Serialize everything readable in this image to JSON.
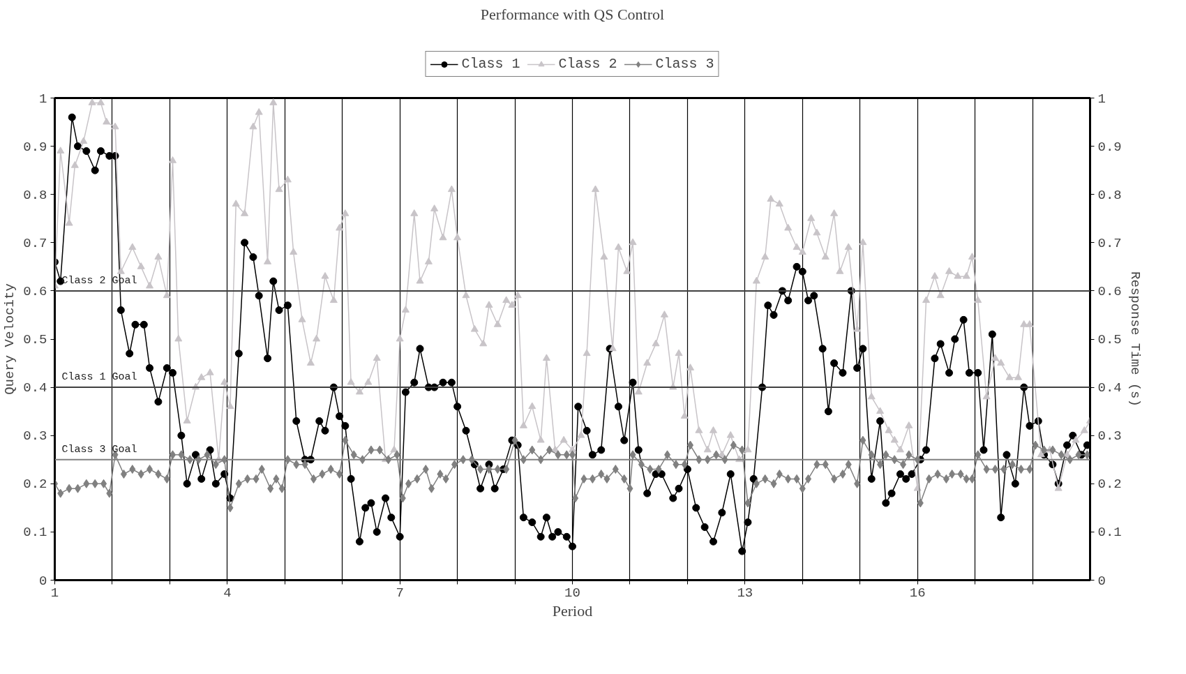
{
  "chart_data": {
    "type": "line",
    "title": "Performance with QS Control",
    "xlabel": "Period",
    "ylabel": "Query Velocity",
    "y2label": "Response Time (s)",
    "xlim": [
      1,
      19
    ],
    "xticks": [
      1,
      {
        "value": 2,
        "label": null
      },
      {
        "value": 3,
        "label": null
      },
      4,
      {
        "value": 5,
        "label": null
      },
      {
        "value": 6,
        "label": null
      },
      7,
      {
        "value": 8,
        "label": null
      },
      {
        "value": 9,
        "label": null
      },
      10,
      {
        "value": 11,
        "label": null
      },
      {
        "value": 12,
        "label": null
      },
      13,
      {
        "value": 14,
        "label": null
      },
      {
        "value": 15,
        "label": null
      },
      16,
      {
        "value": 17,
        "label": null
      },
      {
        "value": 18,
        "label": null
      }
    ],
    "ylim": [
      0,
      1
    ],
    "yticks": [
      0,
      0.1,
      0.2,
      0.3,
      0.4,
      0.5,
      0.6,
      0.7,
      0.8,
      0.9,
      1
    ],
    "y2lim": [
      0,
      1
    ],
    "y2ticks": [
      0,
      0.1,
      0.2,
      0.3,
      0.4,
      0.5,
      0.6,
      0.7,
      0.8,
      0.9,
      1
    ],
    "grid": "x",
    "legend": "top",
    "line_style": "solid",
    "ref_lines": [
      {
        "axis": "y",
        "value": 0.6,
        "label": "Class 2 Goal",
        "color": "#404040"
      },
      {
        "axis": "y",
        "value": 0.4,
        "label": "Class 1 Goal",
        "color": "#404040"
      },
      {
        "axis": "y",
        "value": 0.25,
        "label": "Class 3 Goal",
        "color": "#808080"
      }
    ],
    "series": [
      {
        "name": "Class 1",
        "color": "#000000",
        "marker": "circle",
        "x": [
          1.0,
          1.1,
          1.3,
          1.4,
          1.55,
          1.7,
          1.8,
          1.95,
          2.05,
          2.15,
          2.3,
          2.4,
          2.55,
          2.65,
          2.8,
          2.95,
          3.05,
          3.2,
          3.3,
          3.45,
          3.55,
          3.7,
          3.8,
          3.95,
          4.05,
          4.2,
          4.3,
          4.45,
          4.55,
          4.7,
          4.8,
          4.9,
          5.05,
          5.2,
          5.35,
          5.45,
          5.6,
          5.7,
          5.85,
          5.95,
          6.05,
          6.15,
          6.3,
          6.4,
          6.5,
          6.6,
          6.75,
          6.85,
          7.0,
          7.1,
          7.25,
          7.35,
          7.5,
          7.6,
          7.75,
          7.9,
          8.0,
          8.15,
          8.3,
          8.4,
          8.55,
          8.65,
          8.8,
          8.95,
          9.05,
          9.15,
          9.3,
          9.45,
          9.55,
          9.65,
          9.75,
          9.9,
          10.0,
          10.1,
          10.25,
          10.35,
          10.5,
          10.65,
          10.8,
          10.9,
          11.05,
          11.15,
          11.3,
          11.45,
          11.55,
          11.75,
          11.85,
          12.0,
          12.15,
          12.3,
          12.45,
          12.6,
          12.75,
          12.95,
          13.05,
          13.15,
          13.3,
          13.4,
          13.5,
          13.65,
          13.75,
          13.9,
          14.0,
          14.1,
          14.2,
          14.35,
          14.45,
          14.55,
          14.7,
          14.85,
          14.95,
          15.05,
          15.2,
          15.35,
          15.45,
          15.55,
          15.7,
          15.8,
          15.9,
          16.05,
          16.15,
          16.3,
          16.4,
          16.55,
          16.65,
          16.8,
          16.9,
          17.05,
          17.15,
          17.3,
          17.45,
          17.55,
          17.7,
          17.85,
          17.95,
          18.1,
          18.2,
          18.35,
          18.45,
          18.6,
          18.7,
          18.85,
          18.95
        ],
        "values": [
          0.66,
          0.62,
          0.96,
          0.9,
          0.89,
          0.85,
          0.89,
          0.88,
          0.88,
          0.56,
          0.47,
          0.53,
          0.53,
          0.44,
          0.37,
          0.44,
          0.43,
          0.3,
          0.2,
          0.26,
          0.21,
          0.27,
          0.2,
          0.22,
          0.17,
          0.47,
          0.7,
          0.67,
          0.59,
          0.46,
          0.62,
          0.56,
          0.57,
          0.33,
          0.25,
          0.25,
          0.33,
          0.31,
          0.4,
          0.34,
          0.32,
          0.21,
          0.08,
          0.15,
          0.16,
          0.1,
          0.17,
          0.13,
          0.09,
          0.39,
          0.41,
          0.48,
          0.4,
          0.4,
          0.41,
          0.41,
          0.36,
          0.31,
          0.24,
          0.19,
          0.24,
          0.19,
          0.23,
          0.29,
          0.28,
          0.13,
          0.12,
          0.09,
          0.13,
          0.09,
          0.1,
          0.09,
          0.07,
          0.36,
          0.31,
          0.26,
          0.27,
          0.48,
          0.36,
          0.29,
          0.41,
          0.27,
          0.18,
          0.22,
          0.22,
          0.17,
          0.19,
          0.23,
          0.15,
          0.11,
          0.08,
          0.14,
          0.22,
          0.06,
          0.12,
          0.21,
          0.4,
          0.57,
          0.55,
          0.6,
          0.58,
          0.65,
          0.64,
          0.58,
          0.59,
          0.48,
          0.35,
          0.45,
          0.43,
          0.6,
          0.44,
          0.48,
          0.21,
          0.33,
          0.16,
          0.18,
          0.22,
          0.21,
          0.22,
          0.25,
          0.27,
          0.46,
          0.49,
          0.43,
          0.5,
          0.54,
          0.43,
          0.43,
          0.27,
          0.51,
          0.13,
          0.26,
          0.2,
          0.4,
          0.32,
          0.33,
          0.26,
          0.24,
          0.2,
          0.28,
          0.3,
          0.26,
          0.28
        ]
      },
      {
        "name": "Class 2",
        "color": "#c8c4c8",
        "marker": "triangle",
        "x": [
          1.0,
          1.1,
          1.25,
          1.35,
          1.5,
          1.65,
          1.8,
          1.9,
          2.05,
          2.15,
          2.35,
          2.5,
          2.65,
          2.8,
          2.95,
          3.05,
          3.15,
          3.3,
          3.45,
          3.55,
          3.7,
          3.85,
          3.95,
          4.05,
          4.15,
          4.3,
          4.45,
          4.55,
          4.7,
          4.8,
          4.9,
          5.05,
          5.15,
          5.3,
          5.45,
          5.55,
          5.7,
          5.85,
          5.95,
          6.05,
          6.15,
          6.3,
          6.45,
          6.6,
          6.75,
          6.9,
          7.0,
          7.1,
          7.25,
          7.35,
          7.5,
          7.6,
          7.75,
          7.9,
          8.0,
          8.15,
          8.3,
          8.45,
          8.55,
          8.7,
          8.85,
          8.95,
          9.05,
          9.15,
          9.3,
          9.45,
          9.55,
          9.7,
          9.85,
          10.0,
          10.15,
          10.25,
          10.4,
          10.55,
          10.7,
          10.8,
          10.95,
          11.05,
          11.15,
          11.3,
          11.45,
          11.6,
          11.75,
          11.85,
          11.95,
          12.05,
          12.2,
          12.35,
          12.45,
          12.6,
          12.75,
          12.9,
          13.05,
          13.2,
          13.35,
          13.45,
          13.6,
          13.75,
          13.9,
          14.0,
          14.15,
          14.25,
          14.4,
          14.55,
          14.65,
          14.8,
          14.95,
          15.05,
          15.2,
          15.35,
          15.5,
          15.6,
          15.7,
          15.85,
          16.0,
          16.15,
          16.3,
          16.4,
          16.55,
          16.7,
          16.85,
          16.95,
          17.05,
          17.2,
          17.35,
          17.45,
          17.6,
          17.75,
          17.85,
          17.95,
          18.15,
          18.3,
          18.45,
          18.6,
          18.75,
          18.9,
          19.0
        ],
        "values": [
          0.61,
          0.89,
          0.74,
          0.86,
          0.91,
          0.99,
          0.99,
          0.95,
          0.94,
          0.64,
          0.69,
          0.65,
          0.61,
          0.67,
          0.59,
          0.87,
          0.5,
          0.33,
          0.4,
          0.42,
          0.43,
          0.25,
          0.41,
          0.36,
          0.78,
          0.76,
          0.94,
          0.97,
          0.66,
          0.99,
          0.81,
          0.83,
          0.68,
          0.54,
          0.45,
          0.5,
          0.63,
          0.58,
          0.73,
          0.76,
          0.41,
          0.39,
          0.41,
          0.46,
          0.25,
          0.27,
          0.5,
          0.56,
          0.76,
          0.62,
          0.66,
          0.77,
          0.71,
          0.81,
          0.71,
          0.59,
          0.52,
          0.49,
          0.57,
          0.53,
          0.58,
          0.57,
          0.59,
          0.32,
          0.36,
          0.29,
          0.46,
          0.27,
          0.29,
          0.27,
          0.3,
          0.47,
          0.81,
          0.67,
          0.48,
          0.69,
          0.64,
          0.7,
          0.39,
          0.45,
          0.49,
          0.55,
          0.4,
          0.47,
          0.34,
          0.44,
          0.31,
          0.27,
          0.31,
          0.26,
          0.3,
          0.25,
          0.27,
          0.62,
          0.67,
          0.79,
          0.78,
          0.73,
          0.69,
          0.68,
          0.75,
          0.72,
          0.67,
          0.76,
          0.64,
          0.69,
          0.52,
          0.7,
          0.38,
          0.35,
          0.31,
          0.29,
          0.27,
          0.32,
          0.19,
          0.58,
          0.63,
          0.59,
          0.64,
          0.63,
          0.63,
          0.67,
          0.58,
          0.38,
          0.46,
          0.45,
          0.42,
          0.42,
          0.53,
          0.53,
          0.26,
          0.27,
          0.19,
          0.26,
          0.29,
          0.31,
          0.33
        ]
      },
      {
        "name": "Class 3",
        "color": "#808080",
        "marker": "diamond",
        "x": [
          1.0,
          1.1,
          1.25,
          1.4,
          1.55,
          1.7,
          1.85,
          1.95,
          2.05,
          2.2,
          2.35,
          2.5,
          2.65,
          2.8,
          2.95,
          3.05,
          3.2,
          3.35,
          3.5,
          3.65,
          3.8,
          3.95,
          4.05,
          4.2,
          4.35,
          4.5,
          4.6,
          4.75,
          4.85,
          4.95,
          5.05,
          5.2,
          5.35,
          5.5,
          5.65,
          5.8,
          5.95,
          6.05,
          6.2,
          6.35,
          6.5,
          6.65,
          6.8,
          6.95,
          7.05,
          7.15,
          7.3,
          7.45,
          7.55,
          7.7,
          7.8,
          7.95,
          8.1,
          8.25,
          8.4,
          8.55,
          8.7,
          8.85,
          9.0,
          9.15,
          9.3,
          9.45,
          9.6,
          9.75,
          9.9,
          10.0,
          10.05,
          10.2,
          10.35,
          10.5,
          10.6,
          10.75,
          10.9,
          11.0,
          11.05,
          11.2,
          11.35,
          11.5,
          11.65,
          11.8,
          11.95,
          12.05,
          12.2,
          12.35,
          12.5,
          12.65,
          12.8,
          12.95,
          13.05,
          13.2,
          13.35,
          13.5,
          13.6,
          13.75,
          13.9,
          14.0,
          14.1,
          14.25,
          14.4,
          14.55,
          14.7,
          14.8,
          14.95,
          15.05,
          15.2,
          15.35,
          15.45,
          15.6,
          15.75,
          15.85,
          16.0,
          16.05,
          16.2,
          16.35,
          16.5,
          16.6,
          16.75,
          16.85,
          16.95,
          17.05,
          17.2,
          17.35,
          17.5,
          17.65,
          17.8,
          17.95,
          18.05,
          18.2,
          18.35,
          18.5,
          18.65,
          18.8,
          18.95
        ],
        "values": [
          0.2,
          0.18,
          0.19,
          0.19,
          0.2,
          0.2,
          0.2,
          0.18,
          0.26,
          0.22,
          0.23,
          0.22,
          0.23,
          0.22,
          0.21,
          0.26,
          0.26,
          0.25,
          0.25,
          0.26,
          0.24,
          0.25,
          0.15,
          0.2,
          0.21,
          0.21,
          0.23,
          0.19,
          0.21,
          0.19,
          0.25,
          0.24,
          0.24,
          0.21,
          0.22,
          0.23,
          0.22,
          0.29,
          0.26,
          0.25,
          0.27,
          0.27,
          0.25,
          0.26,
          0.17,
          0.2,
          0.21,
          0.23,
          0.19,
          0.22,
          0.21,
          0.24,
          0.25,
          0.25,
          0.23,
          0.23,
          0.23,
          0.23,
          0.29,
          0.25,
          0.27,
          0.25,
          0.27,
          0.26,
          0.26,
          0.26,
          0.17,
          0.21,
          0.21,
          0.22,
          0.21,
          0.23,
          0.21,
          0.19,
          0.26,
          0.24,
          0.23,
          0.23,
          0.26,
          0.24,
          0.24,
          0.28,
          0.25,
          0.25,
          0.26,
          0.25,
          0.28,
          0.27,
          0.16,
          0.2,
          0.21,
          0.2,
          0.22,
          0.21,
          0.21,
          0.19,
          0.21,
          0.24,
          0.24,
          0.21,
          0.22,
          0.24,
          0.2,
          0.29,
          0.26,
          0.24,
          0.26,
          0.25,
          0.24,
          0.26,
          0.25,
          0.16,
          0.21,
          0.22,
          0.21,
          0.22,
          0.22,
          0.21,
          0.21,
          0.26,
          0.23,
          0.23,
          0.23,
          0.24,
          0.23,
          0.23,
          0.28,
          0.27,
          0.27,
          0.26,
          0.25,
          0.26,
          0.26
        ]
      }
    ]
  }
}
